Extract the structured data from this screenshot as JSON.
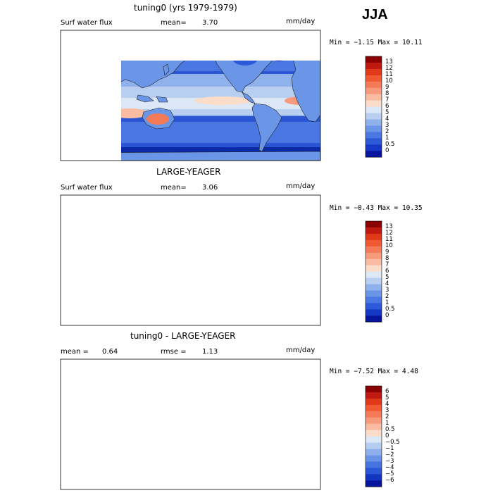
{
  "season": "JJA",
  "panels": [
    {
      "title": "tuning0 (yrs 1979-1979)",
      "left_label": "Surf water flux",
      "stat_label": "mean=",
      "stat_value": "3.70",
      "units": "mm/day",
      "minmax": "Min =  −1.15 Max =  10.11",
      "colorbar": {
        "labels": [
          "13",
          "12",
          "11",
          "10",
          "9",
          "8",
          "7",
          "6",
          "5",
          "4",
          "3",
          "2",
          "1",
          "0.5",
          "0"
        ],
        "colors": [
          "#8b0000",
          "#c0190f",
          "#e03a1b",
          "#ef5a33",
          "#f57a57",
          "#f79a7b",
          "#f9bba1",
          "#fadcc8",
          "#dde8f7",
          "#b8cff2",
          "#8fb2ec",
          "#6b95e7",
          "#4a77e2",
          "#2d5ad9",
          "#1539c6",
          "#06159c"
        ]
      }
    },
    {
      "title": "LARGE-YEAGER",
      "left_label": "Surf water flux",
      "stat_label": "mean=",
      "stat_value": "3.06",
      "units": "mm/day",
      "minmax": "Min =  −0.43 Max =  10.35",
      "colorbar": {
        "labels": [
          "13",
          "12",
          "11",
          "10",
          "9",
          "8",
          "7",
          "6",
          "5",
          "4",
          "3",
          "2",
          "1",
          "0.5",
          "0"
        ],
        "colors": [
          "#8b0000",
          "#c0190f",
          "#e03a1b",
          "#ef5a33",
          "#f57a57",
          "#f79a7b",
          "#f9bba1",
          "#fadcc8",
          "#dde8f7",
          "#b8cff2",
          "#8fb2ec",
          "#6b95e7",
          "#4a77e2",
          "#2d5ad9",
          "#1539c6",
          "#06159c"
        ]
      }
    },
    {
      "title": "tuning0 - LARGE-YEAGER",
      "left_label": "mean =",
      "left_value": "0.64",
      "stat_label": "rmse =",
      "stat_value": "1.13",
      "units": "mm/day",
      "minmax": "Min =  −7.52 Max =   4.48",
      "colorbar": {
        "labels": [
          "6",
          "5",
          "4",
          "3",
          "2",
          "1",
          "0.5",
          "0",
          "−0.5",
          "−1",
          "−2",
          "−3",
          "−4",
          "−5",
          "−6"
        ],
        "colors": [
          "#8b0000",
          "#c0190f",
          "#e03a1b",
          "#ef5a33",
          "#f57a57",
          "#f79a7b",
          "#f9bba1",
          "#fadcc8",
          "#dce8f7",
          "#b6cdf2",
          "#8db0ec",
          "#6993e6",
          "#4775e0",
          "#2a57d6",
          "#1336c2",
          "#06139a"
        ]
      }
    }
  ]
}
